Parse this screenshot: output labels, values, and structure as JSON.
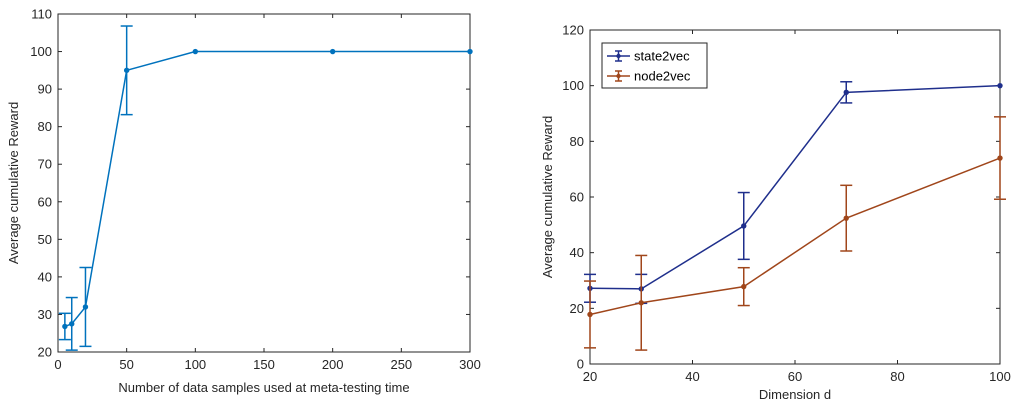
{
  "chart_data": [
    {
      "type": "line",
      "xlabel": "Number of data samples used at meta-testing time",
      "ylabel": "Average cumulative Reward",
      "xlim": [
        0,
        300
      ],
      "ylim": [
        20,
        110
      ],
      "xticks": [
        0,
        50,
        100,
        150,
        200,
        250,
        300
      ],
      "yticks": [
        20,
        30,
        40,
        50,
        60,
        70,
        80,
        90,
        100,
        110
      ],
      "grid": false,
      "legend": null,
      "series": [
        {
          "color": "#0072BD",
          "x": [
            5,
            10,
            20,
            50,
            100,
            200,
            300
          ],
          "y": [
            26.8,
            27.5,
            32.0,
            95.0,
            100.0,
            100.0,
            100.0
          ],
          "err": [
            3.5,
            7.0,
            10.5,
            11.8,
            0,
            0,
            0
          ]
        }
      ]
    },
    {
      "type": "line",
      "xlabel": "Dimension d",
      "ylabel": "Average cumulative Reward",
      "xlim": [
        20,
        100
      ],
      "ylim": [
        0,
        120
      ],
      "xticks": [
        20,
        40,
        60,
        80,
        100
      ],
      "yticks": [
        0,
        20,
        40,
        60,
        80,
        100,
        120
      ],
      "grid": false,
      "legend": "top-left",
      "series": [
        {
          "name": "state2vec",
          "color": "#1F2F8C",
          "x": [
            20,
            30,
            50,
            70,
            100
          ],
          "y": [
            27.2,
            27.0,
            49.6,
            97.6,
            100.0
          ],
          "err": [
            5.0,
            5.2,
            12.0,
            3.8,
            0
          ]
        },
        {
          "name": "node2vec",
          "color": "#A0461B",
          "x": [
            20,
            30,
            50,
            70,
            100
          ],
          "y": [
            17.8,
            22.0,
            27.8,
            52.4,
            74.0
          ],
          "err": [
            12.0,
            17.0,
            6.8,
            11.8,
            14.8
          ]
        }
      ]
    }
  ]
}
